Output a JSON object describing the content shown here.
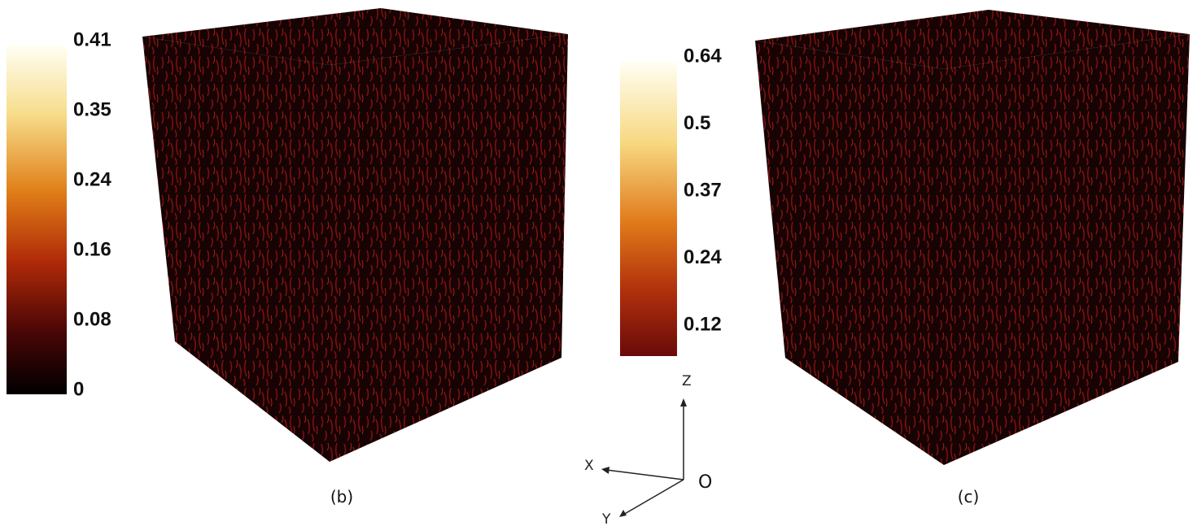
{
  "colorbars": [
    {
      "ticks": [
        "0.41",
        "0.35",
        "0.24",
        "0.16",
        "0.08",
        "0"
      ]
    },
    {
      "ticks": [
        "0.64",
        "0.5",
        "0.37",
        "0.24",
        "0.12"
      ]
    }
  ],
  "axes": {
    "z": "Z",
    "x": "X",
    "y": "Y",
    "origin": "O"
  },
  "captions": [
    "(b)",
    "(c)"
  ]
}
